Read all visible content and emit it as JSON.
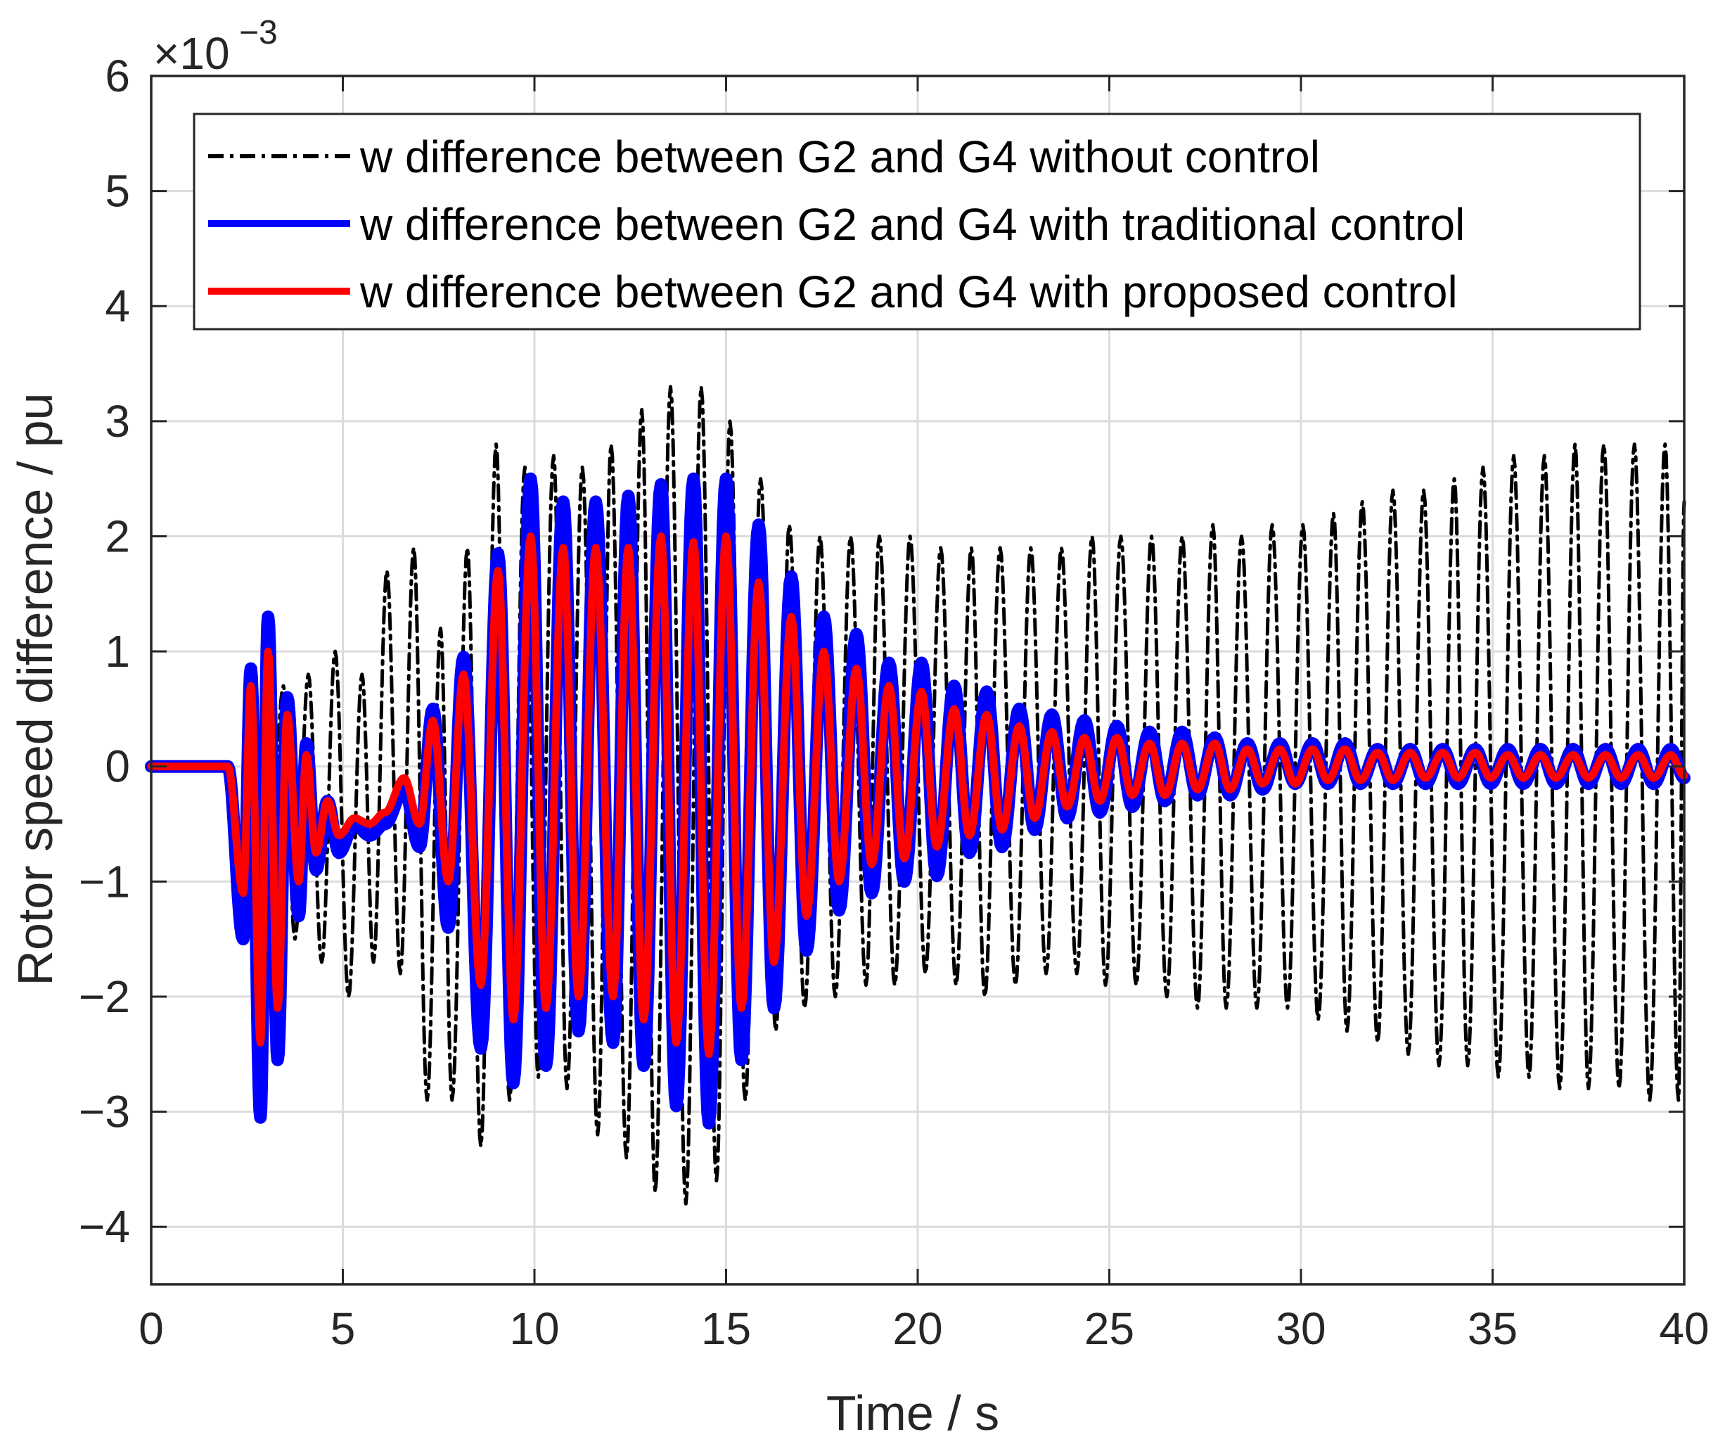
{
  "chart_data": {
    "type": "line",
    "title": "",
    "xlabel": "Time / s",
    "ylabel": "Rotor speed difference / pu",
    "y_exponent_label": "×10",
    "y_exponent_power": "−3",
    "xlim": [
      0,
      40
    ],
    "ylim": [
      -4.5,
      6
    ],
    "x_ticks": [
      0,
      5,
      10,
      15,
      20,
      25,
      30,
      35,
      40
    ],
    "x_tick_labels": [
      "0",
      "5",
      "10",
      "15",
      "20",
      "25",
      "30",
      "35",
      "40"
    ],
    "y_ticks": [
      -4,
      -3,
      -2,
      -1,
      0,
      1,
      2,
      3,
      4,
      5,
      6
    ],
    "y_tick_labels": [
      "−4",
      "−3",
      "−2",
      "−1",
      "0",
      "1",
      "2",
      "3",
      "4",
      "5",
      "6"
    ],
    "grid": true,
    "legend_position": "top",
    "series": [
      {
        "name": "w difference between G2 and G4 without control",
        "color": "#000000",
        "style": "dashdot",
        "peaks": [
          [
            0,
            0
          ],
          [
            2,
            0
          ],
          [
            2.45,
            -1.2
          ],
          [
            2.75,
            0.2
          ],
          [
            3.05,
            -1.3
          ],
          [
            3.45,
            0.7
          ],
          [
            3.75,
            -1.5
          ],
          [
            4.1,
            0.8
          ],
          [
            4.45,
            -1.7
          ],
          [
            4.8,
            1.0
          ],
          [
            5.15,
            -2.0
          ],
          [
            5.5,
            0.8
          ],
          [
            5.8,
            -1.7
          ],
          [
            6.15,
            1.7
          ],
          [
            6.5,
            -1.8
          ],
          [
            6.85,
            1.9
          ],
          [
            7.2,
            -2.9
          ],
          [
            7.55,
            1.2
          ],
          [
            7.85,
            -2.9
          ],
          [
            8.25,
            1.9
          ],
          [
            8.6,
            -3.3
          ],
          [
            9.0,
            2.8
          ],
          [
            9.35,
            -2.9
          ],
          [
            9.75,
            2.6
          ],
          [
            10.1,
            -2.7
          ],
          [
            10.5,
            2.7
          ],
          [
            10.85,
            -2.8
          ],
          [
            11.25,
            2.6
          ],
          [
            11.65,
            -3.2
          ],
          [
            12.0,
            2.8
          ],
          [
            12.4,
            -3.4
          ],
          [
            12.8,
            3.1
          ],
          [
            13.15,
            -3.7
          ],
          [
            13.55,
            3.3
          ],
          [
            13.95,
            -3.8
          ],
          [
            14.35,
            3.3
          ],
          [
            14.75,
            -3.6
          ],
          [
            15.1,
            3.0
          ],
          [
            15.5,
            -2.9
          ],
          [
            15.9,
            2.5
          ],
          [
            16.3,
            -2.3
          ],
          [
            16.65,
            2.1
          ],
          [
            17.05,
            -2.1
          ],
          [
            17.45,
            2.0
          ],
          [
            17.85,
            -2.0
          ],
          [
            18.25,
            2.0
          ],
          [
            18.65,
            -1.9
          ],
          [
            19.0,
            2.0
          ],
          [
            19.4,
            -1.9
          ],
          [
            19.8,
            2.0
          ],
          [
            20.2,
            -1.8
          ],
          [
            20.6,
            1.9
          ],
          [
            21.0,
            -1.9
          ],
          [
            21.4,
            1.9
          ],
          [
            21.75,
            -2.0
          ],
          [
            22.15,
            1.9
          ],
          [
            22.55,
            -1.9
          ],
          [
            22.95,
            1.9
          ],
          [
            23.35,
            -1.8
          ],
          [
            23.75,
            1.9
          ],
          [
            24.15,
            -1.8
          ],
          [
            24.55,
            2.0
          ],
          [
            24.9,
            -1.9
          ],
          [
            25.3,
            2.0
          ],
          [
            25.7,
            -1.9
          ],
          [
            26.1,
            2.0
          ],
          [
            26.5,
            -2.0
          ],
          [
            26.9,
            2.0
          ],
          [
            27.3,
            -2.1
          ],
          [
            27.7,
            2.1
          ],
          [
            28.05,
            -2.1
          ],
          [
            28.45,
            2.0
          ],
          [
            28.85,
            -2.1
          ],
          [
            29.25,
            2.1
          ],
          [
            29.65,
            -2.1
          ],
          [
            30.05,
            2.1
          ],
          [
            30.45,
            -2.2
          ],
          [
            30.85,
            2.2
          ],
          [
            31.2,
            -2.3
          ],
          [
            31.6,
            2.3
          ],
          [
            32.0,
            -2.4
          ],
          [
            32.4,
            2.4
          ],
          [
            32.8,
            -2.5
          ],
          [
            33.2,
            2.4
          ],
          [
            33.6,
            -2.6
          ],
          [
            34.0,
            2.5
          ],
          [
            34.35,
            -2.6
          ],
          [
            34.75,
            2.6
          ],
          [
            35.15,
            -2.7
          ],
          [
            35.55,
            2.7
          ],
          [
            35.95,
            -2.7
          ],
          [
            36.35,
            2.7
          ],
          [
            36.75,
            -2.8
          ],
          [
            37.15,
            2.8
          ],
          [
            37.5,
            -2.8
          ],
          [
            37.9,
            2.8
          ],
          [
            38.3,
            -2.8
          ],
          [
            38.7,
            2.8
          ],
          [
            39.1,
            -2.9
          ],
          [
            39.5,
            2.8
          ],
          [
            39.85,
            -2.9
          ],
          [
            40,
            2.3
          ]
        ]
      },
      {
        "name": "w difference between G2 and G4 with traditional control",
        "color": "#0000ff",
        "style": "solid",
        "peaks": [
          [
            0,
            0
          ],
          [
            2,
            0
          ],
          [
            2.4,
            -1.5
          ],
          [
            2.6,
            0.85
          ],
          [
            2.85,
            -3.05
          ],
          [
            3.05,
            1.3
          ],
          [
            3.3,
            -2.55
          ],
          [
            3.55,
            0.6
          ],
          [
            3.85,
            -1.3
          ],
          [
            4.05,
            0.2
          ],
          [
            4.3,
            -0.9
          ],
          [
            4.6,
            -0.3
          ],
          [
            4.9,
            -0.75
          ],
          [
            5.3,
            -0.5
          ],
          [
            5.7,
            -0.6
          ],
          [
            6.1,
            -0.5
          ],
          [
            6.6,
            -0.2
          ],
          [
            7.0,
            -0.7
          ],
          [
            7.35,
            0.5
          ],
          [
            7.75,
            -1.4
          ],
          [
            8.15,
            0.95
          ],
          [
            8.6,
            -2.45
          ],
          [
            9.05,
            1.85
          ],
          [
            9.45,
            -2.75
          ],
          [
            9.9,
            2.5
          ],
          [
            10.3,
            -2.6
          ],
          [
            10.75,
            2.3
          ],
          [
            11.15,
            -2.3
          ],
          [
            11.6,
            2.3
          ],
          [
            12.05,
            -2.4
          ],
          [
            12.45,
            2.35
          ],
          [
            12.85,
            -2.6
          ],
          [
            13.3,
            2.45
          ],
          [
            13.7,
            -2.95
          ],
          [
            14.15,
            2.5
          ],
          [
            14.55,
            -3.1
          ],
          [
            15.0,
            2.5
          ],
          [
            15.4,
            -2.55
          ],
          [
            15.85,
            2.1
          ],
          [
            16.25,
            -2.1
          ],
          [
            16.7,
            1.65
          ],
          [
            17.1,
            -1.6
          ],
          [
            17.55,
            1.3
          ],
          [
            17.95,
            -1.25
          ],
          [
            18.4,
            1.15
          ],
          [
            18.8,
            -1.1
          ],
          [
            19.25,
            0.9
          ],
          [
            19.65,
            -1.0
          ],
          [
            20.1,
            0.9
          ],
          [
            20.5,
            -0.95
          ],
          [
            20.95,
            0.7
          ],
          [
            21.35,
            -0.75
          ],
          [
            21.8,
            0.65
          ],
          [
            22.2,
            -0.7
          ],
          [
            22.65,
            0.5
          ],
          [
            23.05,
            -0.55
          ],
          [
            23.5,
            0.45
          ],
          [
            23.9,
            -0.45
          ],
          [
            24.35,
            0.4
          ],
          [
            24.75,
            -0.4
          ],
          [
            25.2,
            0.35
          ],
          [
            25.6,
            -0.35
          ],
          [
            26.05,
            0.3
          ],
          [
            26.45,
            -0.3
          ],
          [
            26.9,
            0.3
          ],
          [
            27.3,
            -0.25
          ],
          [
            27.75,
            0.25
          ],
          [
            28.15,
            -0.25
          ],
          [
            28.6,
            0.2
          ],
          [
            29.0,
            -0.2
          ],
          [
            29.45,
            0.2
          ],
          [
            29.85,
            -0.15
          ],
          [
            30.3,
            0.2
          ],
          [
            30.7,
            -0.15
          ],
          [
            31.15,
            0.2
          ],
          [
            31.55,
            -0.15
          ],
          [
            32.0,
            0.15
          ],
          [
            32.4,
            -0.15
          ],
          [
            32.85,
            0.15
          ],
          [
            33.25,
            -0.15
          ],
          [
            33.7,
            0.15
          ],
          [
            34.1,
            -0.15
          ],
          [
            34.55,
            0.15
          ],
          [
            34.95,
            -0.15
          ],
          [
            35.4,
            0.15
          ],
          [
            35.8,
            -0.15
          ],
          [
            36.25,
            0.15
          ],
          [
            36.65,
            -0.15
          ],
          [
            37.1,
            0.15
          ],
          [
            37.5,
            -0.15
          ],
          [
            37.95,
            0.15
          ],
          [
            38.35,
            -0.15
          ],
          [
            38.8,
            0.15
          ],
          [
            39.2,
            -0.15
          ],
          [
            39.65,
            0.15
          ],
          [
            40,
            -0.1
          ]
        ]
      },
      {
        "name": "w difference between G2 and G4 with proposed control",
        "color": "#ff0000",
        "style": "solid",
        "peaks": [
          [
            0,
            0
          ],
          [
            2,
            0
          ],
          [
            2.4,
            -1.1
          ],
          [
            2.6,
            0.7
          ],
          [
            2.85,
            -2.4
          ],
          [
            3.05,
            1.0
          ],
          [
            3.3,
            -2.1
          ],
          [
            3.55,
            0.45
          ],
          [
            3.85,
            -1.0
          ],
          [
            4.05,
            0.1
          ],
          [
            4.3,
            -0.75
          ],
          [
            4.6,
            -0.3
          ],
          [
            4.9,
            -0.6
          ],
          [
            5.3,
            -0.45
          ],
          [
            5.7,
            -0.5
          ],
          [
            6.1,
            -0.4
          ],
          [
            6.6,
            -0.1
          ],
          [
            7.0,
            -0.5
          ],
          [
            7.35,
            0.4
          ],
          [
            7.75,
            -1.0
          ],
          [
            8.15,
            0.8
          ],
          [
            8.6,
            -1.9
          ],
          [
            9.05,
            1.7
          ],
          [
            9.45,
            -2.2
          ],
          [
            9.9,
            2.0
          ],
          [
            10.3,
            -2.1
          ],
          [
            10.75,
            1.9
          ],
          [
            11.15,
            -2.0
          ],
          [
            11.6,
            1.9
          ],
          [
            12.05,
            -2.0
          ],
          [
            12.45,
            1.9
          ],
          [
            12.85,
            -2.2
          ],
          [
            13.3,
            2.0
          ],
          [
            13.7,
            -2.4
          ],
          [
            14.15,
            1.95
          ],
          [
            14.55,
            -2.5
          ],
          [
            15.0,
            2.0
          ],
          [
            15.4,
            -2.1
          ],
          [
            15.85,
            1.6
          ],
          [
            16.25,
            -1.7
          ],
          [
            16.7,
            1.3
          ],
          [
            17.1,
            -1.3
          ],
          [
            17.55,
            1.0
          ],
          [
            17.95,
            -1.0
          ],
          [
            18.4,
            0.85
          ],
          [
            18.8,
            -0.85
          ],
          [
            19.25,
            0.7
          ],
          [
            19.65,
            -0.8
          ],
          [
            20.1,
            0.65
          ],
          [
            20.5,
            -0.7
          ],
          [
            20.95,
            0.5
          ],
          [
            21.35,
            -0.6
          ],
          [
            21.8,
            0.45
          ],
          [
            22.2,
            -0.55
          ],
          [
            22.65,
            0.35
          ],
          [
            23.05,
            -0.45
          ],
          [
            23.5,
            0.3
          ],
          [
            23.9,
            -0.35
          ],
          [
            24.35,
            0.25
          ],
          [
            24.75,
            -0.3
          ],
          [
            25.2,
            0.25
          ],
          [
            25.6,
            -0.25
          ],
          [
            26.05,
            0.2
          ],
          [
            26.45,
            -0.25
          ],
          [
            26.9,
            0.2
          ],
          [
            27.3,
            -0.2
          ],
          [
            27.75,
            0.2
          ],
          [
            28.15,
            -0.2
          ],
          [
            28.6,
            0.15
          ],
          [
            29.0,
            -0.15
          ],
          [
            29.45,
            0.15
          ],
          [
            29.85,
            -0.15
          ],
          [
            30.3,
            0.15
          ],
          [
            30.7,
            -0.12
          ],
          [
            31.15,
            0.15
          ],
          [
            31.55,
            -0.12
          ],
          [
            32.0,
            0.12
          ],
          [
            32.4,
            -0.12
          ],
          [
            32.85,
            0.12
          ],
          [
            33.25,
            -0.1
          ],
          [
            33.7,
            0.12
          ],
          [
            34.1,
            -0.1
          ],
          [
            34.55,
            0.12
          ],
          [
            34.95,
            -0.1
          ],
          [
            35.4,
            0.1
          ],
          [
            35.8,
            -0.1
          ],
          [
            36.25,
            0.1
          ],
          [
            36.65,
            -0.1
          ],
          [
            37.1,
            0.1
          ],
          [
            37.5,
            -0.1
          ],
          [
            37.95,
            0.1
          ],
          [
            38.35,
            -0.1
          ],
          [
            38.8,
            0.1
          ],
          [
            39.2,
            -0.1
          ],
          [
            39.65,
            0.1
          ],
          [
            40,
            -0.08
          ]
        ]
      }
    ]
  }
}
